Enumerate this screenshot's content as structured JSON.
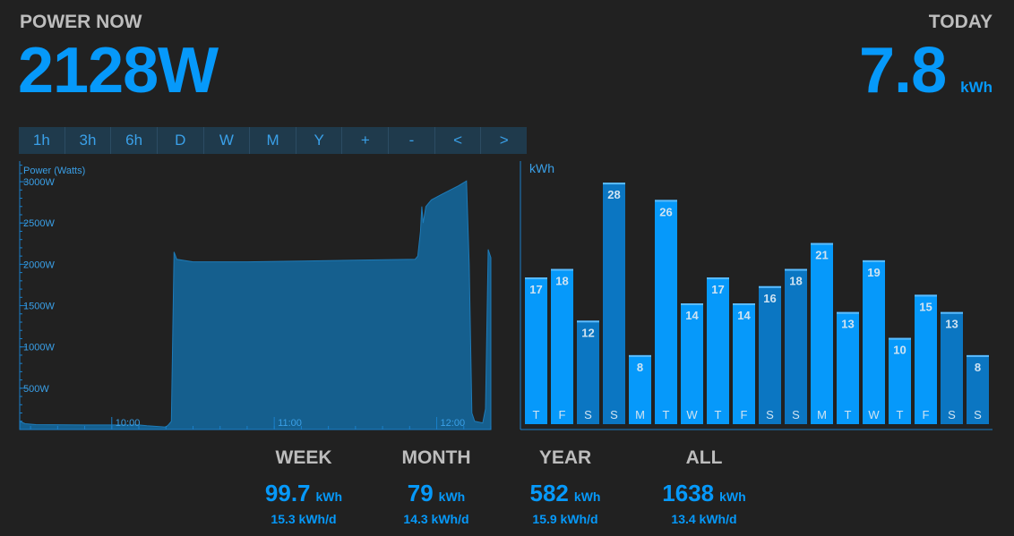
{
  "header": {
    "power_now_label": "POWER NOW",
    "power_now_value": "2128W",
    "today_label": "TODAY",
    "today_value": "7.8",
    "today_unit": "kWh"
  },
  "range_buttons": [
    "1h",
    "3h",
    "6h",
    "D",
    "W",
    "M",
    "Y",
    "+",
    "-",
    "<",
    ">"
  ],
  "colors": {
    "accent": "#0699fa",
    "bar_light": "#0699fa",
    "bar_dark": "#0b76c2",
    "area": "#155f8e",
    "axis": "#1a7fc9"
  },
  "chart_data": [
    {
      "type": "area",
      "ylabel": "Power (Watts)",
      "y_ticks": [
        "500W",
        "1000W",
        "1500W",
        "2000W",
        "2500W",
        "3000W"
      ],
      "y_tick_values": [
        500,
        1000,
        1500,
        2000,
        2500,
        3000
      ],
      "ylim": [
        0,
        3250
      ],
      "x_ticks": [
        "10:00",
        "11:00",
        "12:00"
      ],
      "x_tick_values": [
        600,
        660,
        720
      ],
      "xlim": [
        566,
        740
      ],
      "x_unit": "minutes of day",
      "points": [
        [
          566,
          100
        ],
        [
          568,
          70
        ],
        [
          572,
          60
        ],
        [
          590,
          55
        ],
        [
          610,
          55
        ],
        [
          613,
          45
        ],
        [
          620,
          30
        ],
        [
          621,
          60
        ],
        [
          622,
          100
        ],
        [
          623,
          2150
        ],
        [
          624,
          2060
        ],
        [
          630,
          2030
        ],
        [
          650,
          2030
        ],
        [
          670,
          2040
        ],
        [
          690,
          2050
        ],
        [
          712,
          2060
        ],
        [
          713,
          2100
        ],
        [
          714,
          2400
        ],
        [
          714.5,
          2700
        ],
        [
          715,
          2500
        ],
        [
          716,
          2700
        ],
        [
          718,
          2780
        ],
        [
          722,
          2850
        ],
        [
          728,
          2950
        ],
        [
          731,
          3010
        ],
        [
          732,
          2000
        ],
        [
          733,
          200
        ],
        [
          734,
          100
        ],
        [
          737,
          80
        ],
        [
          738,
          250
        ],
        [
          739,
          2180
        ],
        [
          740,
          2080
        ]
      ]
    },
    {
      "type": "bar",
      "ylabel": "kWh",
      "categories": [
        "T",
        "F",
        "S",
        "S",
        "M",
        "T",
        "W",
        "T",
        "F",
        "S",
        "S",
        "M",
        "T",
        "W",
        "T",
        "F",
        "S",
        "S"
      ],
      "values": [
        17,
        18,
        12,
        28,
        8,
        26,
        14,
        17,
        14,
        16,
        18,
        21,
        13,
        19,
        10,
        15,
        13,
        8
      ],
      "weekend": [
        false,
        false,
        true,
        true,
        false,
        false,
        false,
        false,
        false,
        true,
        true,
        false,
        false,
        false,
        false,
        false,
        true,
        true
      ],
      "ylim": [
        0,
        30.5
      ]
    }
  ],
  "stats": [
    {
      "title": "WEEK",
      "value": "99.7",
      "unit": "kWh",
      "daily": "15.3 kWh/d"
    },
    {
      "title": "MONTH",
      "value": "79",
      "unit": "kWh",
      "daily": "14.3 kWh/d"
    },
    {
      "title": "YEAR",
      "value": "582",
      "unit": "kWh",
      "daily": "15.9 kWh/d"
    },
    {
      "title": "ALL",
      "value": "1638",
      "unit": "kWh",
      "daily": "13.4 kWh/d"
    }
  ]
}
